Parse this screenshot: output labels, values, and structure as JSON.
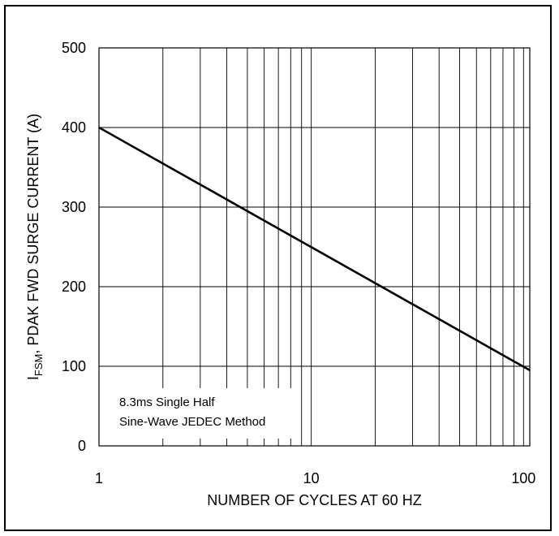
{
  "chart_data": {
    "type": "line",
    "xlabel": "NUMBER OF CYCLES AT 60 HZ",
    "ylabel_sub": "FSM",
    "ylabel_main": "I",
    "ylabel_rest": ", PDAK FWD SURGE CURRENT (A)",
    "x_scale": "log",
    "xlim": [
      1,
      107
    ],
    "ylim": [
      0,
      500
    ],
    "x_ticks": [
      "1",
      "10",
      "100"
    ],
    "y_ticks": [
      "0",
      "100",
      "200",
      "300",
      "400",
      "500"
    ],
    "grid": true,
    "series": [
      {
        "x": [
          1,
          107
        ],
        "y": [
          400,
          95
        ]
      }
    ],
    "annotation": [
      "8.3ms Single Half",
      "Sine-Wave JEDEC Method"
    ]
  }
}
